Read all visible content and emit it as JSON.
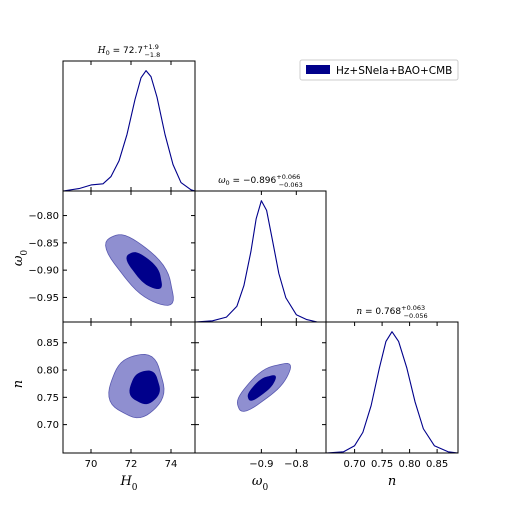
{
  "colors": {
    "dark_blue": "#00008b",
    "light_blue": "#8f8fd0",
    "line": "#00008b"
  },
  "legend": {
    "label": "Hz+SNeIa+BAO+CMB",
    "placement": "upper-right"
  },
  "chart_data": [
    {
      "type": "line",
      "panel": "H0 marginal",
      "title": {
        "var": "H",
        "sub": "0",
        "value": " = 72.7",
        "sup": "+1.9",
        "low": "−1.8"
      },
      "xlim": [
        68.6,
        75.2
      ],
      "x": [
        68.6,
        69.4,
        70.0,
        70.6,
        71.0,
        71.4,
        71.8,
        72.2,
        72.5,
        72.75,
        73.0,
        73.3,
        73.7,
        74.1,
        74.5,
        75.0,
        75.2
      ],
      "y": [
        0.0,
        0.02,
        0.05,
        0.06,
        0.12,
        0.25,
        0.47,
        0.76,
        0.94,
        1.0,
        0.95,
        0.78,
        0.47,
        0.22,
        0.07,
        0.01,
        0.0
      ]
    },
    {
      "type": "contour",
      "panel": "H0 vs w0",
      "xlabel": {
        "var": "H",
        "sub": "0"
      },
      "ylabel": {
        "var": "ω",
        "sub": "0"
      },
      "xlim": [
        68.6,
        75.2
      ],
      "ylim": [
        -0.995,
        -0.755
      ],
      "xticks": [
        "70",
        "72",
        "74"
      ],
      "yticks": [
        "−0.80",
        "−0.85",
        "−0.90",
        "−0.95"
      ],
      "contour_95": {
        "cx": 72.5,
        "cy": -0.898,
        "a": 3.05,
        "b": 0.034,
        "angle_data_slope": -0.0395
      },
      "contour_68": {
        "cx": 72.7,
        "cy": -0.9,
        "a": 1.55,
        "b": 0.018,
        "angle_data_slope": -0.0395
      }
    },
    {
      "type": "contour",
      "panel": "H0 vs n",
      "xlabel": {
        "var": "H",
        "sub": "0"
      },
      "ylabel": {
        "var": "n"
      },
      "xlim": [
        68.6,
        75.2
      ],
      "ylim": [
        0.648,
        0.888
      ],
      "yticks": [
        "0.85",
        "0.80",
        "0.75",
        "0.70"
      ],
      "contour_95": {
        "cx": 72.3,
        "cy": 0.77,
        "a": 2.6,
        "b": 0.058,
        "angle_data_slope": -0.009
      },
      "contour_68": {
        "cx": 72.7,
        "cy": 0.768,
        "a": 1.4,
        "b": 0.03,
        "angle_data_slope": -0.009
      }
    },
    {
      "type": "line",
      "panel": "w0 marginal",
      "title": {
        "var": "ω",
        "sub": "0",
        "value": " = −0.896",
        "sup": "+0.066",
        "low": "−0.063"
      },
      "xlim": [
        -1.09,
        -0.715
      ],
      "x": [
        -1.09,
        -1.04,
        -1.0,
        -0.97,
        -0.95,
        -0.93,
        -0.915,
        -0.9,
        -0.885,
        -0.87,
        -0.85,
        -0.83,
        -0.8,
        -0.77,
        -0.74,
        -0.715
      ],
      "y": [
        0.0,
        0.01,
        0.04,
        0.13,
        0.3,
        0.58,
        0.85,
        1.0,
        0.92,
        0.7,
        0.4,
        0.2,
        0.06,
        0.02,
        0.0,
        0.0
      ]
    },
    {
      "type": "contour",
      "panel": "w0 vs n",
      "xlabel": {
        "var": "ω",
        "sub": "0"
      },
      "ylabel": {
        "var": "n"
      },
      "xlim": [
        -1.09,
        -0.715
      ],
      "ylim": [
        0.648,
        0.888
      ],
      "xticks": [
        "−0.9",
        "−0.8"
      ],
      "contour_95": {
        "cx": -0.895,
        "cy": 0.77,
        "a": 0.145,
        "b": 0.022,
        "angle_data_slope": 0.55
      },
      "contour_68": {
        "cx": -0.9,
        "cy": 0.768,
        "a": 0.075,
        "b": 0.011,
        "angle_data_slope": 0.55
      }
    },
    {
      "type": "line",
      "panel": "n marginal",
      "title": {
        "var": "n",
        "value": " = 0.768",
        "sup": "+0.063",
        "low": "−0.056"
      },
      "xlim": [
        0.648,
        0.888
      ],
      "xticks": [
        "0.70",
        "0.75",
        "0.80",
        "0.85"
      ],
      "x": [
        0.648,
        0.68,
        0.7,
        0.715,
        0.73,
        0.745,
        0.757,
        0.768,
        0.78,
        0.795,
        0.81,
        0.825,
        0.845,
        0.87,
        0.888
      ],
      "y": [
        0.0,
        0.01,
        0.06,
        0.17,
        0.39,
        0.7,
        0.92,
        1.0,
        0.92,
        0.7,
        0.42,
        0.2,
        0.06,
        0.01,
        0.0
      ]
    }
  ]
}
